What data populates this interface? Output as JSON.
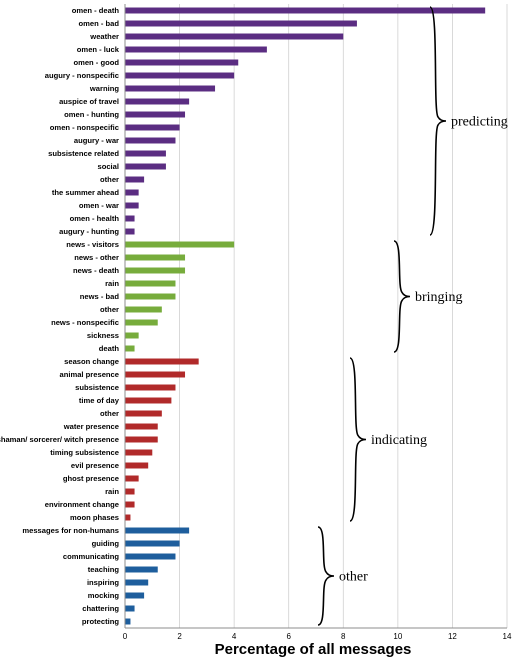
{
  "chart_data": {
    "type": "bar",
    "orientation": "horizontal",
    "xlabel": "Percentage of all messages",
    "xlim": [
      0,
      14
    ],
    "xticks": [
      0,
      2,
      4,
      6,
      8,
      10,
      12,
      14
    ],
    "grid": "vertical",
    "groups": [
      {
        "name": "predicting",
        "color": "#5b2d82",
        "categories": [
          "omen - death",
          "omen - bad",
          "weather",
          "omen - luck",
          "omen - good",
          "augury - nonspecific",
          "warning",
          "auspice of travel",
          "omen - hunting",
          "omen - nonspecific",
          "augury - war",
          "subsistence related",
          "social",
          "other",
          "the summer ahead",
          "omen - war",
          "omen - health",
          "augury - hunting"
        ],
        "values": [
          13.2,
          8.5,
          8.0,
          5.2,
          4.15,
          4.0,
          3.3,
          2.35,
          2.2,
          2.0,
          1.85,
          1.5,
          1.5,
          0.7,
          0.5,
          0.5,
          0.35,
          0.35
        ]
      },
      {
        "name": "bringing",
        "color": "#77ac3c",
        "categories": [
          "news - visitors",
          "news - other",
          "news - death",
          "rain",
          "news - bad",
          "other",
          "news - nonspecific",
          "sickness",
          "death"
        ],
        "values": [
          4.0,
          2.2,
          2.2,
          1.85,
          1.85,
          1.35,
          1.2,
          0.5,
          0.35
        ]
      },
      {
        "name": "indicating",
        "color": "#b12a2a",
        "categories": [
          "season change",
          "animal presence",
          "subsistence",
          "time of day",
          "other",
          "water presence",
          "shaman/ sorcerer/ witch presence",
          "timing subsistence",
          "evil presence",
          "ghost presence",
          "rain",
          "environment change",
          "moon phases"
        ],
        "values": [
          2.7,
          2.2,
          1.85,
          1.7,
          1.35,
          1.2,
          1.2,
          1.0,
          0.85,
          0.5,
          0.35,
          0.35,
          0.2
        ]
      },
      {
        "name": "other",
        "color": "#1e5e9d",
        "categories": [
          "messages for non-humans",
          "guiding",
          "communicating",
          "teaching",
          "inspiring",
          "mocking",
          "chattering",
          "protecting"
        ],
        "values": [
          2.35,
          2.0,
          1.85,
          1.2,
          0.85,
          0.7,
          0.35,
          0.2
        ]
      }
    ]
  }
}
